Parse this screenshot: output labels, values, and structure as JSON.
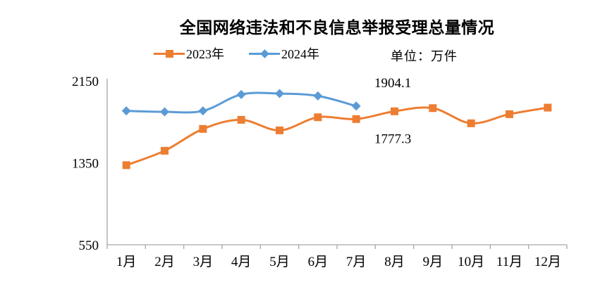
{
  "page": {
    "background": "#ffffff"
  },
  "chart_data": {
    "type": "line",
    "title": "全国网络违法和不良信息举报受理总量情况",
    "unit_label": "单位：万件",
    "categories": [
      "1月",
      "2月",
      "3月",
      "4月",
      "5月",
      "6月",
      "7月",
      "8月",
      "9月",
      "10月",
      "11月",
      "12月"
    ],
    "series": [
      {
        "name": "2023年",
        "color": "#ED7D31",
        "marker": "square",
        "values": [
          1327,
          1468,
          1681,
          1770,
          1667,
          1795,
          1777.3,
          1853,
          1884,
          1736,
          1825,
          1889
        ]
      },
      {
        "name": "2024年",
        "color": "#5B9BD5",
        "marker": "diamond",
        "values": [
          1857,
          1848,
          1857,
          2017,
          2026,
          2003,
          1904.1
        ]
      }
    ],
    "annotations": [
      {
        "text": "1904.1",
        "series": 1,
        "point": 6,
        "placement": "above"
      },
      {
        "text": "1777.3",
        "series": 0,
        "point": 6,
        "placement": "below"
      }
    ],
    "y_axis": {
      "min": 550,
      "max": 2150,
      "ticks": [
        550,
        1350,
        2150
      ]
    },
    "xlabel": "",
    "ylabel": "",
    "grid": false,
    "legend_position": "top",
    "smoothed_lines": true,
    "axis_color": "#A6A6A6",
    "text_color": "#000000"
  }
}
